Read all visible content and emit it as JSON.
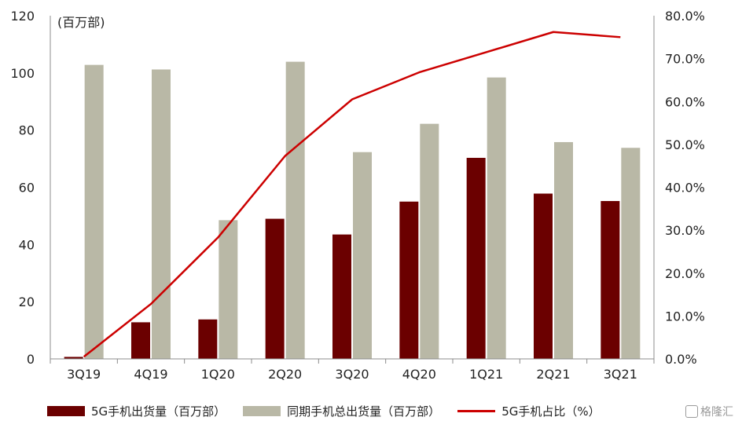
{
  "chart_data": {
    "type": "bar",
    "categories": [
      "3Q19",
      "4Q19",
      "1Q20",
      "2Q20",
      "3Q20",
      "4Q20",
      "1Q21",
      "2Q21",
      "3Q21"
    ],
    "series": [
      {
        "name": "5G手机出货量（百万部）",
        "kind": "bar",
        "axis": "left",
        "color": "#6b0000",
        "values": [
          0.7,
          12.8,
          13.8,
          49.0,
          43.5,
          55.0,
          70.3,
          57.8,
          55.2
        ]
      },
      {
        "name": "同期手机总出货量（百万部）",
        "kind": "bar",
        "axis": "left",
        "color": "#b9b8a6",
        "values": [
          102.8,
          101.2,
          48.5,
          103.9,
          72.3,
          82.2,
          98.4,
          75.8,
          73.8
        ]
      },
      {
        "name": "5G手机占比（%）",
        "kind": "line",
        "axis": "right",
        "color": "#cc0000",
        "values": [
          0.5,
          12.8,
          28.3,
          47.3,
          60.5,
          66.8,
          71.5,
          76.2,
          75.0
        ]
      }
    ],
    "left_axis": {
      "unit_label": "(百万部)",
      "ylim": [
        0,
        120
      ],
      "ticks": [
        "0",
        "20",
        "40",
        "60",
        "80",
        "100",
        "120"
      ]
    },
    "right_axis": {
      "ylim": [
        0,
        80
      ],
      "ticks": [
        "0.0%",
        "10.0%",
        "20.0%",
        "30.0%",
        "40.0%",
        "50.0%",
        "60.0%",
        "70.0%",
        "80.0%"
      ]
    },
    "grid": false,
    "legend_position": "bottom"
  },
  "watermark": {
    "text": "格隆汇"
  }
}
